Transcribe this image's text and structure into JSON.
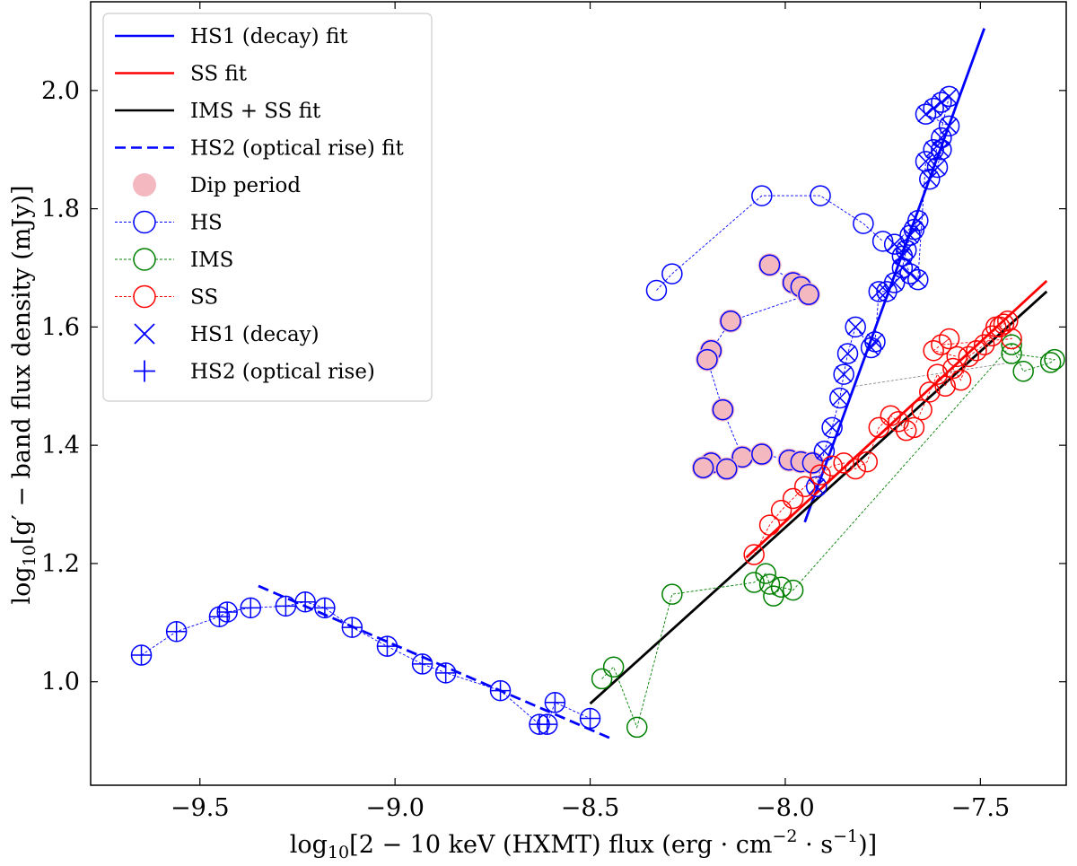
{
  "chart_data": {
    "type": "scatter",
    "xlabel_parts": [
      "log",
      "10",
      "[2 − 10 keV (HXMT) flux (erg · cm",
      "−2",
      " · s",
      "−1",
      ")]"
    ],
    "ylabel_parts": [
      "log",
      "10",
      "[g′ − band flux density (mJy)]"
    ],
    "xlim": [
      -9.78,
      -7.28
    ],
    "ylim": [
      0.825,
      2.15
    ],
    "x_ticks": [
      -9.5,
      -9.0,
      -8.5,
      -8.0,
      -7.5
    ],
    "x_tick_labels": [
      "−9.5",
      "−9.0",
      "−8.5",
      "−8.0",
      "−7.5"
    ],
    "y_ticks": [
      1.0,
      1.2,
      1.4,
      1.6,
      1.8,
      2.0
    ],
    "y_tick_labels": [
      "1.0",
      "1.2",
      "1.4",
      "1.6",
      "1.8",
      "2.0"
    ],
    "legend_position": "top-left",
    "colors": {
      "hs": "#0000ff",
      "ims": "#008000",
      "ss": "#ff0000",
      "black": "#000000",
      "dip": "#f4b8c1",
      "connector": "#888888"
    },
    "fit_lines": [
      {
        "name": "HS1 (decay) fit",
        "color": "#0000ff",
        "dash": false,
        "x": [
          -7.95,
          -7.49
        ],
        "y": [
          1.27,
          2.105
        ]
      },
      {
        "name": "SS fit",
        "color": "#ff0000",
        "dash": false,
        "x": [
          -8.1,
          -7.33
        ],
        "y": [
          1.21,
          1.678
        ]
      },
      {
        "name": "IMS + SS fit",
        "color": "#000000",
        "dash": false,
        "x": [
          -8.5,
          -7.33
        ],
        "y": [
          0.963,
          1.66
        ]
      },
      {
        "name": "HS2 (optical rise) fit",
        "color": "#0000ff",
        "dash": true,
        "x": [
          -9.35,
          -8.45
        ],
        "y": [
          1.162,
          0.905
        ]
      }
    ],
    "series": [
      {
        "name": "HS",
        "color": "#0000ff",
        "marker": "circle-plus",
        "x": [
          -9.65,
          -9.56,
          -9.45,
          -9.43,
          -9.37,
          -9.28,
          -9.23,
          -9.18,
          -9.11,
          -9.02,
          -8.93,
          -8.87,
          -8.73,
          -8.63,
          -8.61,
          -8.59,
          -8.5
        ],
        "y": [
          1.045,
          1.085,
          1.11,
          1.118,
          1.125,
          1.128,
          1.135,
          1.125,
          1.092,
          1.06,
          1.03,
          1.015,
          0.985,
          0.928,
          0.928,
          0.965,
          0.938
        ]
      },
      {
        "name": "HS",
        "color": "#0000ff",
        "marker": "circle",
        "x": [
          -8.33,
          -8.29,
          -8.06,
          -7.91,
          -7.8,
          -7.75
        ],
        "y": [
          1.662,
          1.69,
          1.822,
          1.822,
          1.775,
          1.745
        ]
      },
      {
        "name": "Dip period",
        "color": "#0000ff",
        "marker": "circle-dip",
        "x": [
          -8.04,
          -7.98,
          -7.96,
          -7.94,
          -8.14,
          -8.19,
          -8.2,
          -8.16,
          -8.11,
          -8.19,
          -8.21,
          -8.15,
          -8.06,
          -7.99,
          -7.96,
          -7.93
        ],
        "y": [
          1.705,
          1.675,
          1.668,
          1.655,
          1.61,
          1.56,
          1.545,
          1.46,
          1.38,
          1.37,
          1.362,
          1.36,
          1.385,
          1.375,
          1.372,
          1.37
        ]
      },
      {
        "name": "HS1 (decay)",
        "color": "#0000ff",
        "marker": "circle-x",
        "x": [
          -7.92,
          -7.9,
          -7.88,
          -7.86,
          -7.85,
          -7.84,
          -7.82,
          -7.78,
          -7.77,
          -7.76,
          -7.74,
          -7.72,
          -7.7,
          -7.69,
          -7.68,
          -7.67,
          -7.66,
          -7.72,
          -7.7,
          -7.68,
          -7.66,
          -7.64,
          -7.62,
          -7.6,
          -7.58,
          -7.64,
          -7.62,
          -7.6,
          -7.58,
          -7.63,
          -7.61,
          -7.6
        ],
        "y": [
          1.33,
          1.39,
          1.43,
          1.48,
          1.52,
          1.555,
          1.6,
          1.565,
          1.575,
          1.66,
          1.66,
          1.675,
          1.7,
          1.73,
          1.755,
          1.765,
          1.78,
          1.74,
          1.72,
          1.69,
          1.68,
          1.88,
          1.9,
          1.92,
          1.94,
          1.96,
          1.97,
          1.98,
          1.99,
          1.85,
          1.87,
          1.9
        ]
      },
      {
        "name": "IMS",
        "color": "#008000",
        "marker": "circle",
        "x": [
          -8.47,
          -8.44,
          -8.38,
          -8.29,
          -8.08,
          -8.05,
          -8.04,
          -8.03,
          -8.01,
          -7.98,
          -7.42,
          -7.39,
          -7.32,
          -7.31,
          -7.42
        ],
        "y": [
          1.005,
          1.025,
          0.923,
          1.148,
          1.168,
          1.183,
          1.165,
          1.145,
          1.16,
          1.155,
          1.57,
          1.525,
          1.54,
          1.545,
          1.555
        ]
      },
      {
        "name": "SS",
        "color": "#ff0000",
        "marker": "circle",
        "x": [
          -8.08,
          -8.04,
          -8.01,
          -7.98,
          -7.95,
          -7.91,
          -7.88,
          -7.85,
          -7.82,
          -7.79,
          -7.76,
          -7.73,
          -7.71,
          -7.69,
          -7.67,
          -7.65,
          -7.63,
          -7.61,
          -7.59,
          -7.57,
          -7.55,
          -7.53,
          -7.51,
          -7.49,
          -7.47,
          -7.46,
          -7.45,
          -7.44,
          -7.43,
          -7.42,
          -7.6,
          -7.58,
          -7.62,
          -7.56
        ],
        "y": [
          1.215,
          1.265,
          1.29,
          1.31,
          1.33,
          1.35,
          1.365,
          1.37,
          1.36,
          1.372,
          1.43,
          1.45,
          1.44,
          1.425,
          1.43,
          1.46,
          1.49,
          1.52,
          1.5,
          1.53,
          1.51,
          1.55,
          1.56,
          1.57,
          1.585,
          1.6,
          1.6,
          1.605,
          1.61,
          1.58,
          1.57,
          1.58,
          1.56,
          1.55
        ]
      }
    ],
    "connector": {
      "color": "#888888",
      "x": [
        -7.82,
        -7.42
      ],
      "y": [
        1.5,
        1.54
      ]
    },
    "legend": [
      {
        "label": "HS1 (decay) fit",
        "kind": "line",
        "color": "#0000ff"
      },
      {
        "label": "SS fit",
        "kind": "line",
        "color": "#ff0000"
      },
      {
        "label": "IMS + SS fit",
        "kind": "line",
        "color": "#000000"
      },
      {
        "label": "HS2 (optical rise) fit",
        "kind": "dash",
        "color": "#0000ff"
      },
      {
        "label": "Dip period",
        "kind": "dip",
        "color": "#f4b8c1"
      },
      {
        "label": "HS",
        "kind": "circle",
        "color": "#0000ff"
      },
      {
        "label": "IMS",
        "kind": "circle",
        "color": "#008000"
      },
      {
        "label": "SS",
        "kind": "circle",
        "color": "#ff0000"
      },
      {
        "label": "HS1 (decay)",
        "kind": "x",
        "color": "#0000ff"
      },
      {
        "label": "HS2 (optical rise)",
        "kind": "plus",
        "color": "#0000ff"
      }
    ]
  }
}
